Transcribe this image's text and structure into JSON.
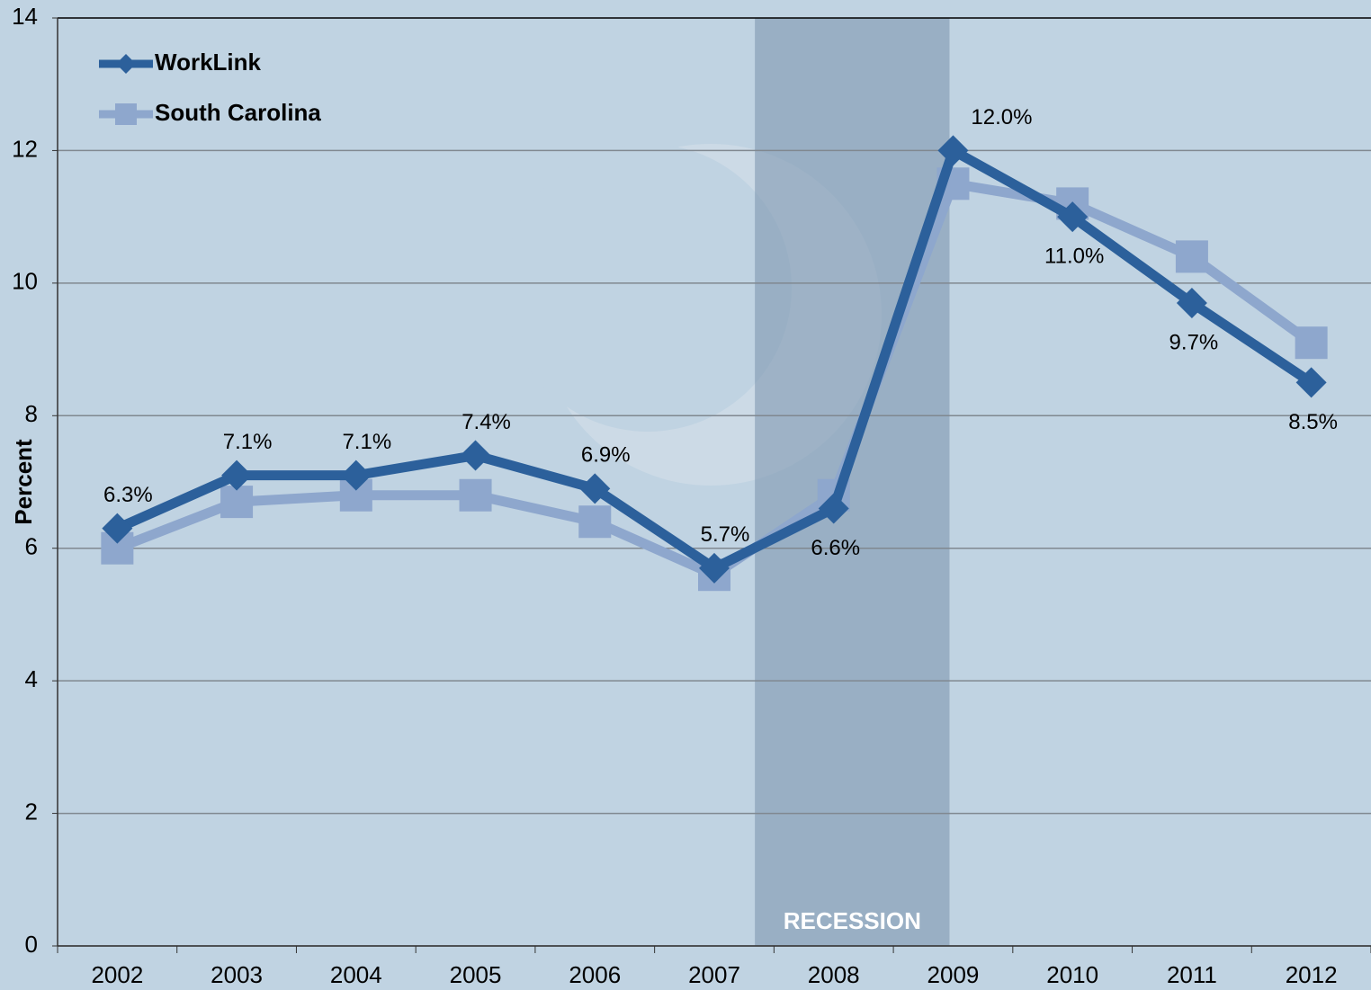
{
  "chart_data": {
    "type": "line",
    "y_label": "Percent",
    "annotation": "RECESSION",
    "categories": [
      "2002",
      "2003",
      "2004",
      "2005",
      "2006",
      "2007",
      "2008",
      "2009",
      "2010",
      "2011",
      "2012"
    ],
    "series": [
      {
        "name": "WorkLink",
        "color": "#2c609b",
        "marker": "diamond",
        "values": [
          6.3,
          7.1,
          7.1,
          7.4,
          6.9,
          5.7,
          6.6,
          12.0,
          11.0,
          9.7,
          8.5
        ],
        "value_labels": [
          "6.3%",
          "7.1%",
          "7.1%",
          "7.4%",
          "6.9%",
          "5.7%",
          "6.6%",
          "12.0%",
          "11.0%",
          "9.7%",
          "8.5%"
        ]
      },
      {
        "name": "South Carolina",
        "color": "#8ea7cd",
        "marker": "square",
        "values": [
          6.0,
          6.7,
          6.8,
          6.8,
          6.4,
          5.6,
          6.8,
          11.5,
          11.2,
          10.4,
          9.1
        ]
      }
    ],
    "ylim": [
      0,
      14
    ],
    "yticks": [
      0,
      2,
      4,
      6,
      8,
      10,
      12,
      14
    ],
    "grid": true,
    "legend": "top-left"
  }
}
